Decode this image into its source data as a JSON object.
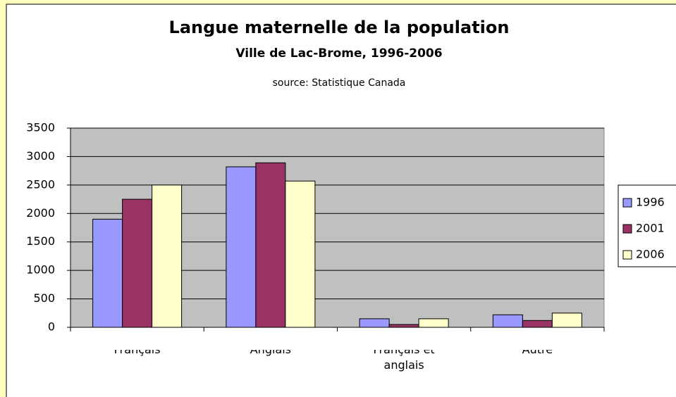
{
  "chart_data": {
    "type": "bar",
    "title": "Langue maternelle de la population",
    "subtitle": "Ville de Lac-Brome, 1996-2006",
    "source": "source:  Statistique Canada",
    "categories": [
      "Français",
      "Anglais",
      "Français et anglais",
      "Autre"
    ],
    "series": [
      {
        "name": "1996",
        "color": "#9999ff",
        "values": [
          1900,
          2820,
          150,
          220
        ]
      },
      {
        "name": "2001",
        "color": "#993366",
        "values": [
          2250,
          2890,
          50,
          120
        ]
      },
      {
        "name": "2006",
        "color": "#ffffcc",
        "values": [
          2500,
          2570,
          150,
          250
        ]
      }
    ],
    "ylim": [
      0,
      3500
    ],
    "yticks": [
      0,
      500,
      1000,
      1500,
      2000,
      2500,
      3000,
      3500
    ],
    "grid": true,
    "legend": "right"
  }
}
